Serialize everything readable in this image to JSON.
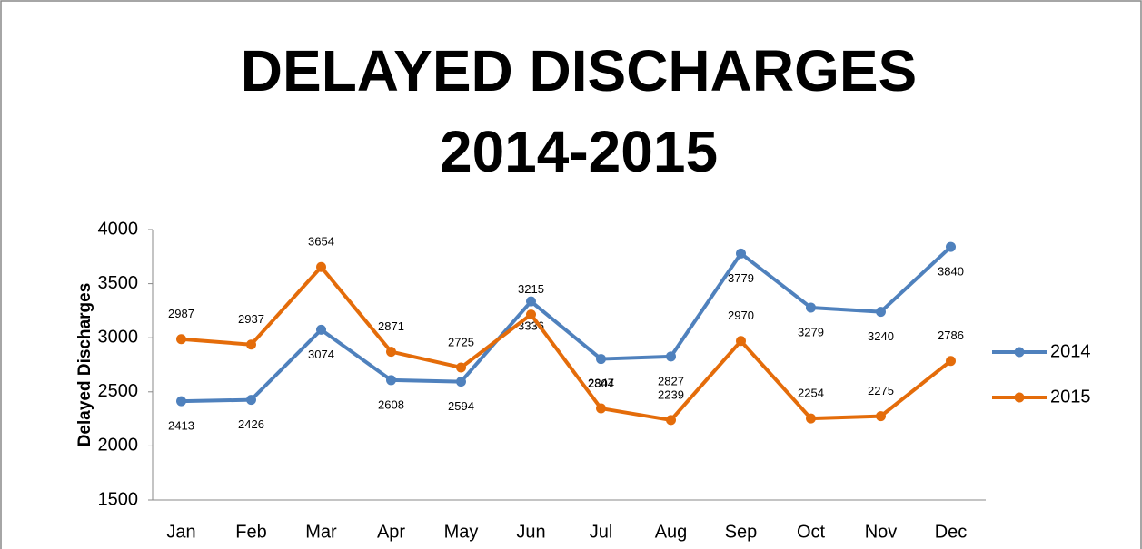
{
  "chart_data": {
    "type": "line",
    "title": [
      "DELAYED DISCHARGES",
      "2014-2015"
    ],
    "y_label": "Delayed Discharges",
    "categories": [
      "Jan",
      "Feb",
      "Mar",
      "Apr",
      "May",
      "Jun",
      "Jul",
      "Aug",
      "Sep",
      "Oct",
      "Nov",
      "Dec"
    ],
    "series": [
      {
        "name": "2014",
        "color": "#4f81bd",
        "values": [
          2413,
          2426,
          3074,
          2608,
          2594,
          3336,
          2804,
          2827,
          3779,
          3279,
          3240,
          3840
        ]
      },
      {
        "name": "2015",
        "color": "#e46c0a",
        "values": [
          2987,
          2937,
          3654,
          2871,
          2725,
          3215,
          2347,
          2239,
          2970,
          2254,
          2275,
          2786
        ]
      }
    ],
    "ylim": [
      1500,
      4000
    ],
    "yticks": [
      1500,
      2000,
      2500,
      3000,
      3500,
      4000
    ],
    "grid": false,
    "legend": "right"
  }
}
